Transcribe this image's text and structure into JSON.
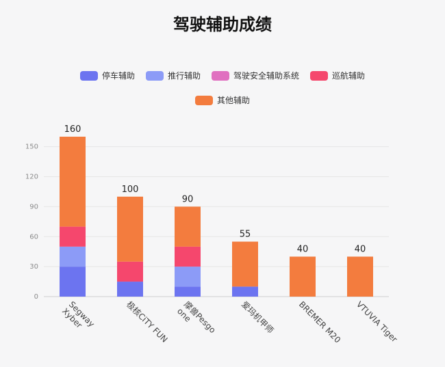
{
  "chart_data": {
    "type": "bar",
    "stacked": true,
    "title": "驾驶辅助成绩",
    "categories": [
      "Segway Xyber",
      "极核CiTY FUN",
      "摩兽Pesgo one",
      "爱玛机甲师",
      "BREMER M20",
      "VTUVIA Tiger"
    ],
    "series": [
      {
        "name": "停车辅助",
        "color": "#6c74f0",
        "values": [
          30,
          15,
          10,
          10,
          0,
          0
        ]
      },
      {
        "name": "推行辅助",
        "color": "#8c9bf7",
        "values": [
          20,
          0,
          20,
          0,
          0,
          0
        ]
      },
      {
        "name": "驾驶安全辅助系统",
        "color": "#e070c0",
        "values": [
          0,
          0,
          0,
          0,
          0,
          0
        ]
      },
      {
        "name": "巡航辅助",
        "color": "#f5476d",
        "values": [
          20,
          20,
          20,
          0,
          0,
          0
        ]
      },
      {
        "name": "其他辅助",
        "color": "#f37c3e",
        "values": [
          90,
          65,
          40,
          45,
          40,
          40
        ]
      }
    ],
    "totals": [
      160,
      100,
      90,
      55,
      40,
      40
    ],
    "yticks": [
      0,
      30,
      60,
      90,
      120,
      150
    ],
    "ylim": [
      0,
      160
    ],
    "grid": true,
    "legend_position": "top"
  }
}
